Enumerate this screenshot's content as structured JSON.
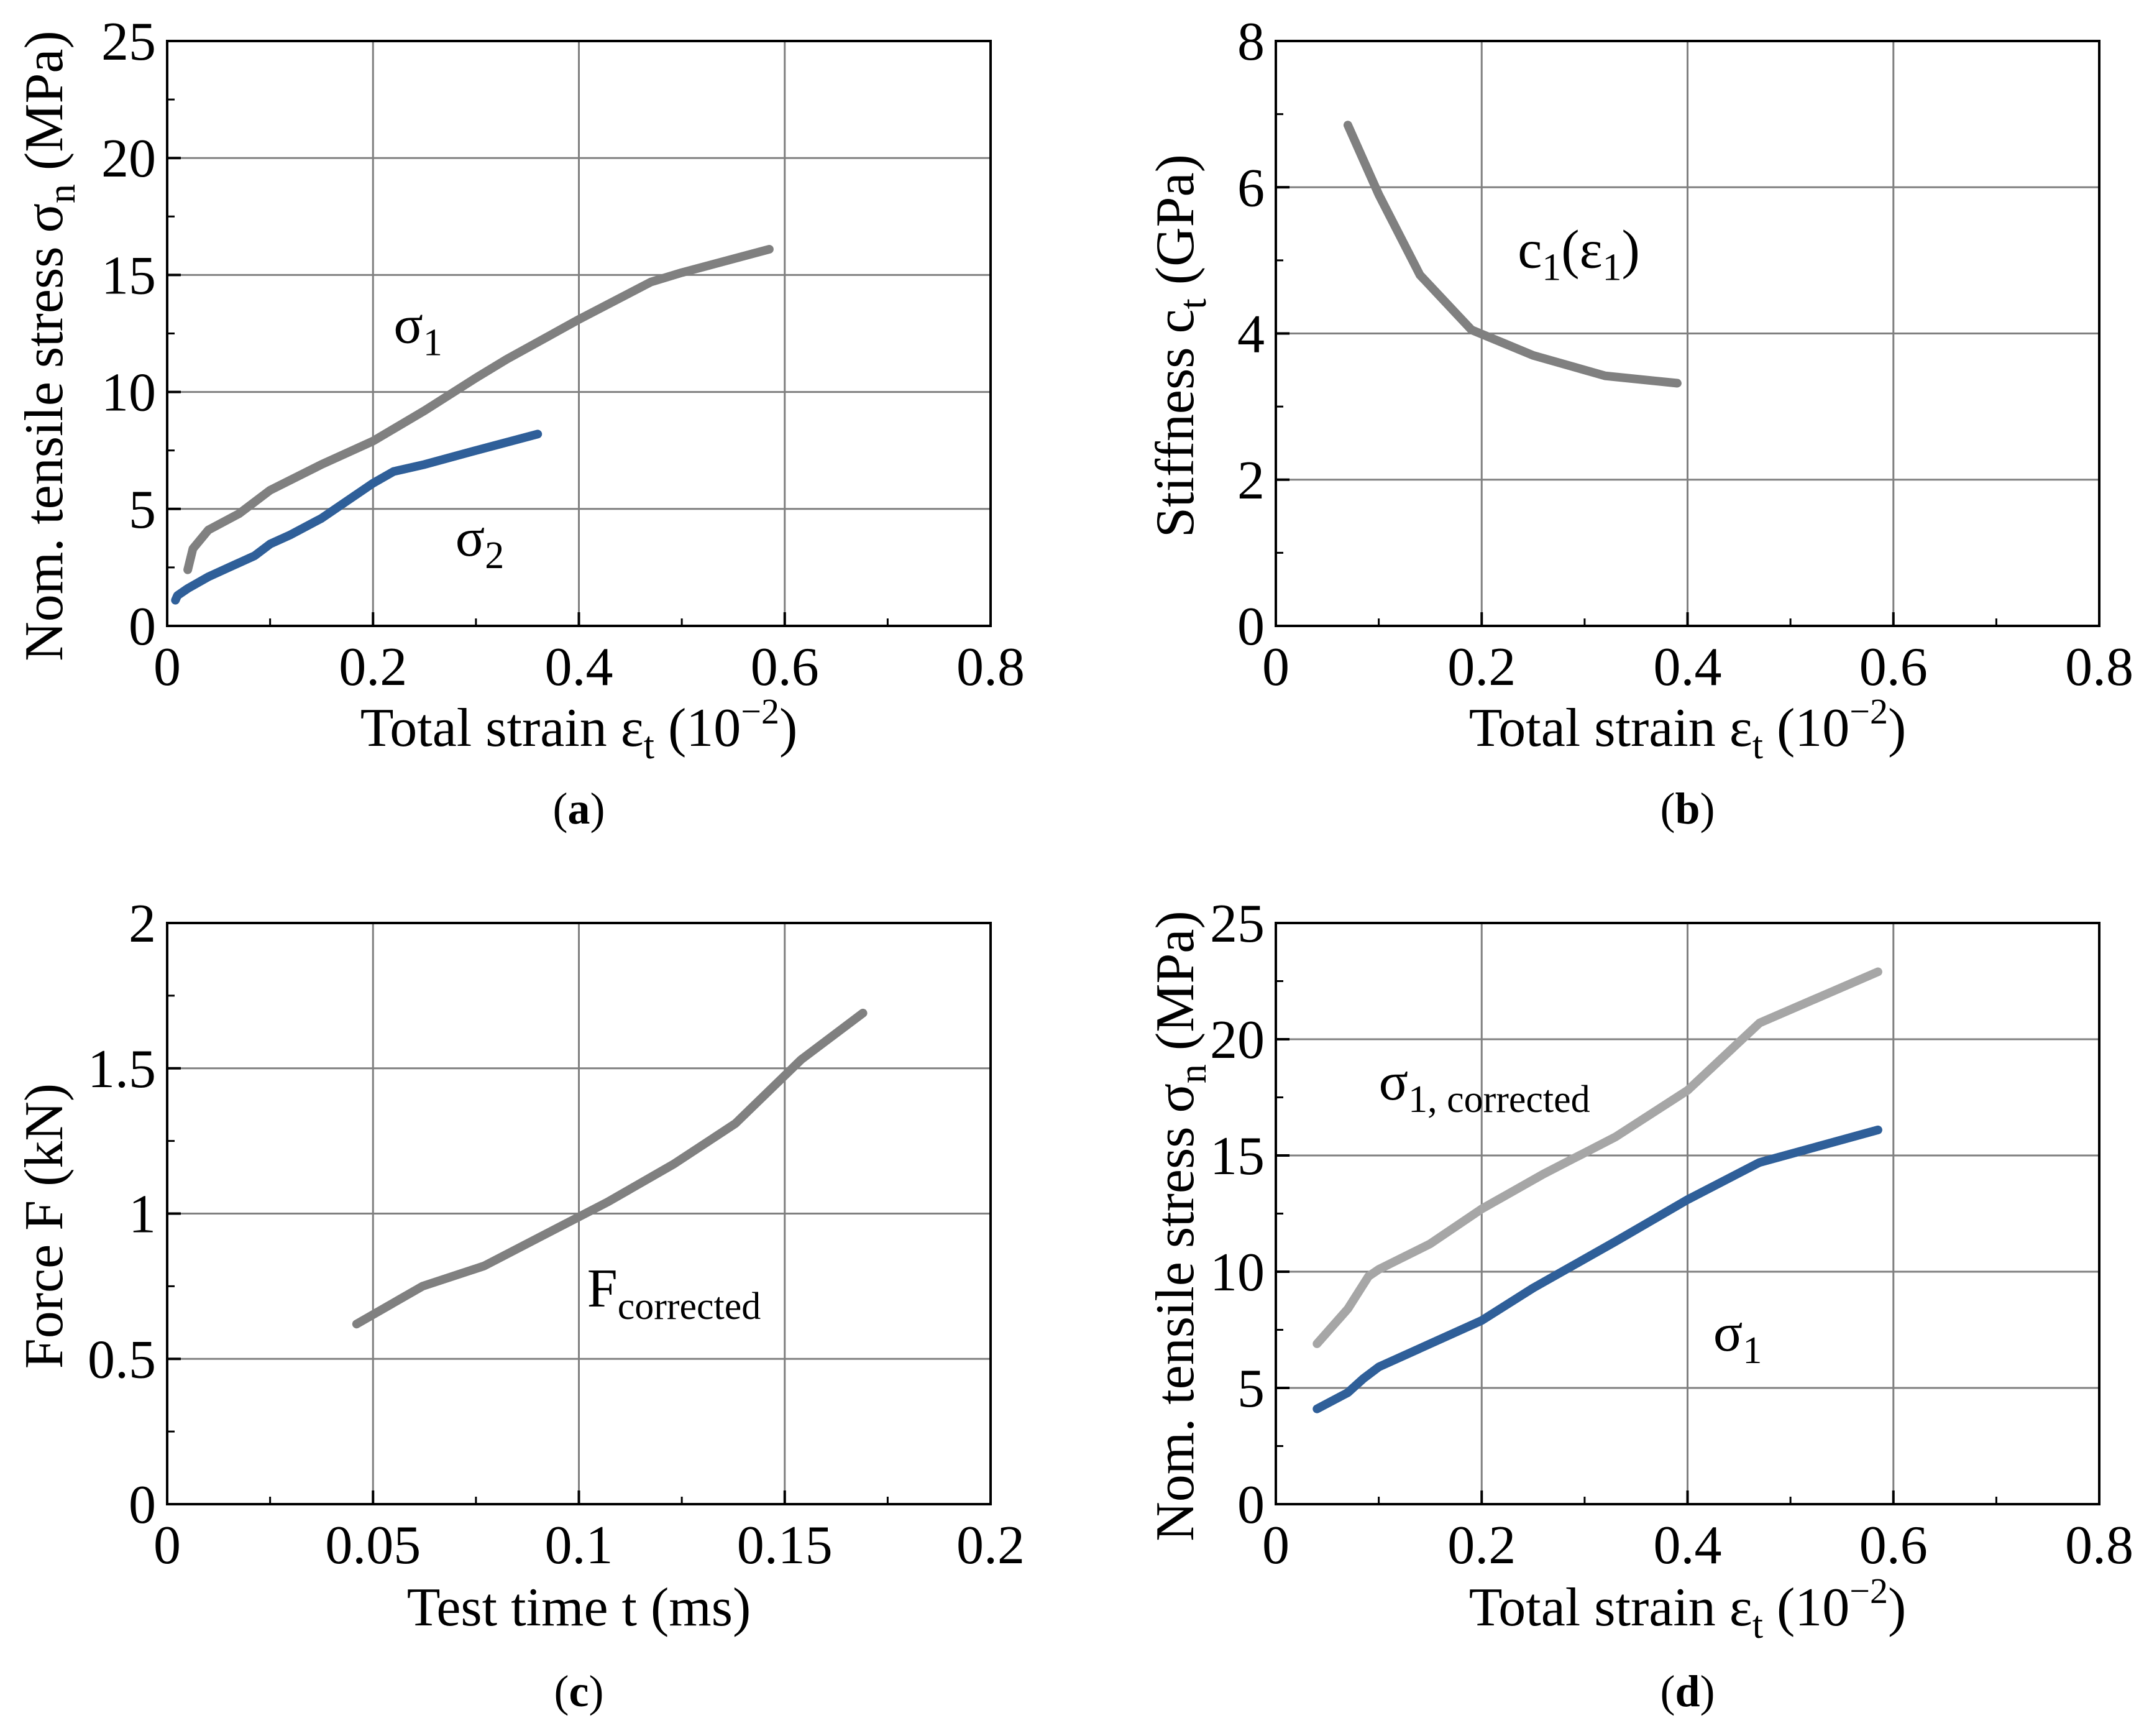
{
  "colors": {
    "gray": "#808080",
    "light_gray": "#a6a6a6",
    "blue": "#2f5f99",
    "grid": "#808080",
    "axis": "#000000"
  },
  "chart_data": [
    {
      "id": "a",
      "type": "line",
      "caption": "a",
      "xlabel": {
        "main": "Total strain ε",
        "sub": "t",
        "tail": " (10",
        "sup": "−2",
        "end": ")"
      },
      "ylabel": {
        "main": "Nom. tensile stress σ",
        "sub": "n",
        "tail": " (MPa)"
      },
      "xlim": [
        0,
        0.8
      ],
      "ylim": [
        0,
        25
      ],
      "xticks": [
        0,
        0.2,
        0.4,
        0.6,
        0.8
      ],
      "xtick_labels": [
        "0",
        "0.2",
        "0.4",
        "0.6",
        "0.8"
      ],
      "yticks": [
        0,
        5,
        10,
        15,
        20,
        25
      ],
      "ytick_labels": [
        "0",
        "5",
        "10",
        "15",
        "20",
        "25"
      ],
      "yminor": [
        2.5,
        7.5,
        12.5,
        17.5,
        22.5
      ],
      "series": [
        {
          "name": "σ1",
          "color": "#808080",
          "x": [
            0.02,
            0.025,
            0.04,
            0.07,
            0.085,
            0.1,
            0.15,
            0.2,
            0.25,
            0.3,
            0.33,
            0.4,
            0.47,
            0.5,
            0.585
          ],
          "y": [
            2.4,
            3.3,
            4.1,
            4.8,
            5.3,
            5.8,
            6.9,
            7.9,
            9.2,
            10.6,
            11.4,
            13.1,
            14.7,
            15.1,
            16.1
          ]
        },
        {
          "name": "σ2",
          "color": "#2f5f99",
          "x": [
            0.008,
            0.01,
            0.02,
            0.04,
            0.06,
            0.085,
            0.1,
            0.12,
            0.15,
            0.18,
            0.2,
            0.22,
            0.25,
            0.3,
            0.36
          ],
          "y": [
            1.1,
            1.3,
            1.6,
            2.1,
            2.5,
            3.0,
            3.5,
            3.9,
            4.6,
            5.5,
            6.1,
            6.6,
            6.9,
            7.5,
            8.2
          ]
        }
      ],
      "annotations": [
        {
          "main": "σ",
          "sub": "1",
          "x": 0.22,
          "y": 12.1
        },
        {
          "main": "σ",
          "sub": "2",
          "x": 0.28,
          "y": 3.0
        }
      ]
    },
    {
      "id": "b",
      "type": "line",
      "caption": "b",
      "xlabel": {
        "main": "Total strain ε",
        "sub": "t",
        "tail": " (10",
        "sup": "−2",
        "end": ")"
      },
      "ylabel": {
        "main": "Stiffness c",
        "sub": "t",
        "tail": " (GPa)"
      },
      "xlim": [
        0,
        0.8
      ],
      "ylim": [
        0,
        8
      ],
      "xticks": [
        0,
        0.2,
        0.4,
        0.6,
        0.8
      ],
      "xtick_labels": [
        "0",
        "0.2",
        "0.4",
        "0.6",
        "0.8"
      ],
      "yticks": [
        0,
        2,
        4,
        6,
        8
      ],
      "ytick_labels": [
        "0",
        "2",
        "4",
        "6",
        "8"
      ],
      "yminor": [
        1,
        3,
        5,
        7
      ],
      "series": [
        {
          "name": "c1(ε1)",
          "color": "#808080",
          "x": [
            0.07,
            0.1,
            0.14,
            0.19,
            0.25,
            0.32,
            0.39
          ],
          "y": [
            6.85,
            5.9,
            4.8,
            4.05,
            3.7,
            3.42,
            3.32
          ]
        }
      ],
      "annotations": [
        {
          "main": "c",
          "sub": "1",
          "tail": "(ε",
          "sub2": "1",
          "end": ")",
          "x": 0.235,
          "y": 4.9
        }
      ]
    },
    {
      "id": "c",
      "type": "line",
      "caption": "c",
      "xlabel": {
        "main": "Test time t (ms)"
      },
      "ylabel": {
        "main": "Force F (kN)"
      },
      "xlim": [
        0,
        0.2
      ],
      "ylim": [
        0,
        2
      ],
      "xticks": [
        0,
        0.05,
        0.1,
        0.15,
        0.2
      ],
      "xtick_labels": [
        "0",
        "0.05",
        "0.1",
        "0.15",
        "0.2"
      ],
      "yticks": [
        0,
        0.5,
        1,
        1.5,
        2
      ],
      "ytick_labels": [
        "0",
        "0.5",
        "1",
        "1.5",
        "2"
      ],
      "yminor": [
        0.25,
        0.75,
        1.25,
        1.75
      ],
      "series": [
        {
          "name": "Fcorrected",
          "color": "#808080",
          "x": [
            0.046,
            0.062,
            0.077,
            0.092,
            0.107,
            0.123,
            0.138,
            0.154,
            0.169
          ],
          "y": [
            0.62,
            0.75,
            0.82,
            0.93,
            1.04,
            1.17,
            1.31,
            1.53,
            1.69
          ]
        }
      ],
      "annotations": [
        {
          "main": "F",
          "sub": "corrected",
          "x": 0.102,
          "y": 0.68
        }
      ]
    },
    {
      "id": "d",
      "type": "line",
      "caption": "d",
      "xlabel": {
        "main": "Total strain ε",
        "sub": "t",
        "tail": " (10",
        "sup": "−2",
        "end": ")"
      },
      "ylabel": {
        "main": "Nom. tensile stress σ",
        "sub": "n",
        "tail": " (MPa)"
      },
      "xlim": [
        0,
        0.8
      ],
      "ylim": [
        0,
        25
      ],
      "xticks": [
        0,
        0.2,
        0.4,
        0.6,
        0.8
      ],
      "xtick_labels": [
        "0",
        "0.2",
        "0.4",
        "0.6",
        "0.8"
      ],
      "yticks": [
        0,
        5,
        10,
        15,
        20,
        25
      ],
      "ytick_labels": [
        "0",
        "5",
        "10",
        "15",
        "20",
        "25"
      ],
      "yminor": [
        2.5,
        7.5,
        12.5,
        17.5,
        22.5
      ],
      "series": [
        {
          "name": "σ1, corrected",
          "color": "#a6a6a6",
          "x": [
            0.04,
            0.07,
            0.09,
            0.1,
            0.15,
            0.2,
            0.26,
            0.33,
            0.4,
            0.47,
            0.585
          ],
          "y": [
            6.9,
            8.4,
            9.8,
            10.1,
            11.2,
            12.7,
            14.2,
            15.8,
            17.8,
            20.7,
            22.9
          ]
        },
        {
          "name": "σ1",
          "color": "#2f5f99",
          "x": [
            0.04,
            0.07,
            0.085,
            0.1,
            0.15,
            0.2,
            0.25,
            0.33,
            0.4,
            0.47,
            0.585
          ],
          "y": [
            4.1,
            4.8,
            5.4,
            5.9,
            6.9,
            7.9,
            9.3,
            11.3,
            13.1,
            14.7,
            16.1
          ]
        }
      ],
      "annotations": [
        {
          "main": "σ",
          "sub": "1, corrected",
          "x": 0.1,
          "y": 17.4
        },
        {
          "main": "σ",
          "sub": "1",
          "x": 0.425,
          "y": 6.6
        }
      ]
    }
  ]
}
